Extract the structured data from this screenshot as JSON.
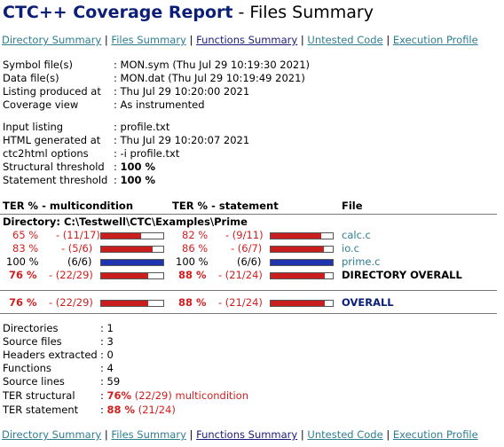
{
  "title": {
    "product": "CTC++ Coverage Report",
    "rest": " - Files Summary"
  },
  "nav": [
    {
      "label": "Directory Summary"
    },
    {
      "label": "Files Summary"
    },
    {
      "label": "Functions Summary"
    },
    {
      "label": "Untested Code"
    },
    {
      "label": "Execution Profile"
    }
  ],
  "nav_separator": "|",
  "info": [
    {
      "label": "Symbol file(s)",
      "value": ": MON.sym (Thu Jul 29 10:19:30 2021)"
    },
    {
      "label": "Data file(s)",
      "value": ": MON.dat (Thu Jul 29 10:19:49 2021)"
    },
    {
      "label": "Listing produced at",
      "value": ": Thu Jul 29 10:20:00 2021"
    },
    {
      "label": "Coverage view",
      "value": ": As instrumented"
    }
  ],
  "info2": [
    {
      "label": "Input listing",
      "value": ": profile.txt"
    },
    {
      "label": "HTML generated at",
      "value": ": Thu Jul 29 10:20:07 2021"
    },
    {
      "label": "ctc2html options",
      "value": ": -i profile.txt"
    }
  ],
  "thresholds": [
    {
      "label": "Structural threshold",
      "prefix": ": ",
      "value": "100 %"
    },
    {
      "label": "Statement threshold",
      "prefix": ": ",
      "value": "100 %"
    }
  ],
  "table": {
    "headers": {
      "multicondition": "TER % - multicondition",
      "statement": "TER % - statement",
      "file": "File"
    },
    "directory": "Directory: C:\\Testwell\\CTC\\Examples\\Prime",
    "rows": [
      {
        "mc_pct": "65 %",
        "mc_cnt": "- (11/17)",
        "mc_fill": 0.647,
        "st_pct": "82 %",
        "st_cnt": "- (9/11)",
        "st_fill": 0.818,
        "file": "calc.c",
        "color": "red"
      },
      {
        "mc_pct": "83 %",
        "mc_cnt": "- (5/6)",
        "mc_fill": 0.833,
        "st_pct": "86 %",
        "st_cnt": "- (6/7)",
        "st_fill": 0.857,
        "file": "io.c",
        "color": "red"
      },
      {
        "mc_pct": "100 %",
        "mc_cnt": "(6/6)",
        "mc_fill": 1.0,
        "st_pct": "100 %",
        "st_cnt": "(6/6)",
        "st_fill": 1.0,
        "file": "prime.c",
        "color": "blue"
      }
    ],
    "dir_overall": {
      "mc_pct": "76 %",
      "mc_cnt": "- (22/29)",
      "mc_fill": 0.759,
      "st_pct": "88 %",
      "st_cnt": "- (21/24)",
      "st_fill": 0.875,
      "label": "DIRECTORY OVERALL"
    },
    "overall": {
      "mc_pct": "76 %",
      "mc_cnt": "- (22/29)",
      "mc_fill": 0.759,
      "st_pct": "88 %",
      "st_cnt": "- (21/24)",
      "st_fill": 0.875,
      "label": "OVERALL"
    }
  },
  "summary": [
    {
      "label": "Directories",
      "value": ": 1"
    },
    {
      "label": "Source files",
      "value": ": 3"
    },
    {
      "label": "Headers extracted",
      "value": ": 0"
    },
    {
      "label": "Functions",
      "value": ": 4"
    },
    {
      "label": "Source lines",
      "value": ": 59"
    }
  ],
  "ter_structural": {
    "label": "TER structural",
    "prefix": ": ",
    "pct": "76%",
    "detail": " (22/29) multicondition"
  },
  "ter_statement": {
    "label": "TER statement",
    "prefix": ": ",
    "pct": "88 %",
    "detail": " (21/24)"
  },
  "colors": {
    "red": "#d21e1e",
    "blue": "#1f35b0",
    "link": "#2e7e8f",
    "navy": "#0b1e78"
  }
}
